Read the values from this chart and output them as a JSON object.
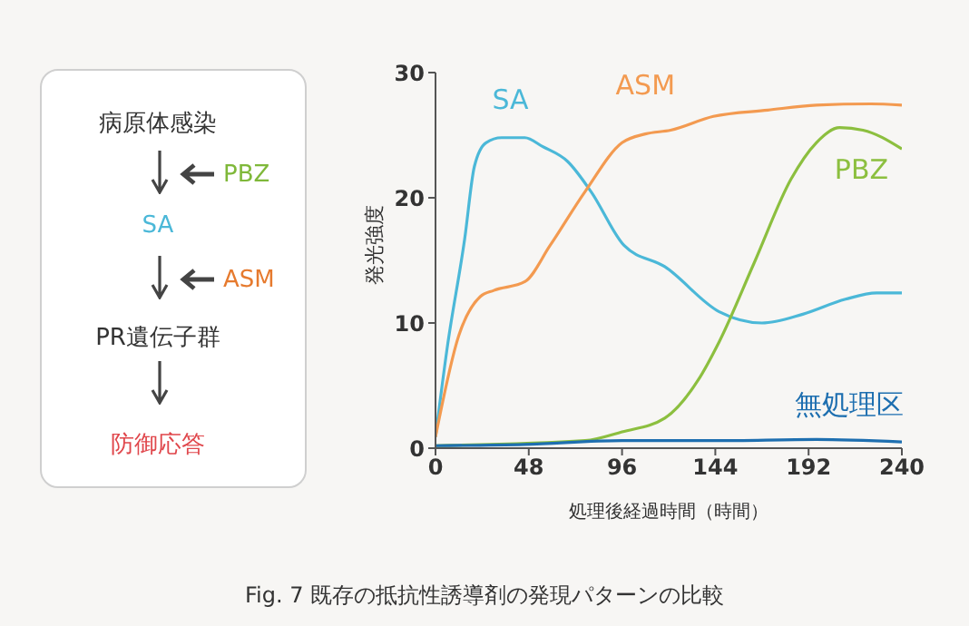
{
  "chart_data": [
    {
      "type": "other",
      "annotations": [
        "病原体感染",
        "PBZ",
        "SA",
        "ASM",
        "PR遺伝子群",
        "防御応答"
      ]
    },
    {
      "type": "line",
      "xlabel": "処理後経過時間（時間）",
      "ylabel": "発光強度",
      "xlim": [
        0,
        240
      ],
      "xticks": [
        0,
        48,
        96,
        144,
        192,
        240
      ],
      "ylim": [
        0,
        30
      ],
      "yticks": [
        0,
        10,
        20,
        30
      ],
      "marker": "none",
      "line_style": "solid",
      "series": [
        {
          "name": "SA",
          "color": "#4bb8d8",
          "x": [
            0,
            6,
            15,
            20,
            26,
            34,
            46,
            55,
            68,
            80,
            97,
            118,
            146,
            168,
            189,
            211,
            227,
            240
          ],
          "values": [
            0.9,
            8,
            16.7,
            22.5,
            24.4,
            24.8,
            24.8,
            24.1,
            22.9,
            20.5,
            16.2,
            14.5,
            10.9,
            10,
            10.7,
            11.9,
            12.4,
            12.4
          ]
        },
        {
          "name": "ASM",
          "color": "#f39a50",
          "x": [
            0,
            12,
            23,
            30,
            46,
            59,
            77,
            96,
            108,
            121,
            143,
            171,
            196,
            224,
            240
          ],
          "values": [
            0.9,
            9,
            12.1,
            12.6,
            13.3,
            16.2,
            20.5,
            24.4,
            25.1,
            25.4,
            26.5,
            27,
            27.4,
            27.5,
            27.4
          ]
        },
        {
          "name": "PBZ",
          "color": "#8cbf3f",
          "x": [
            0,
            77,
            96,
            118,
            135,
            146,
            164,
            183,
            196,
            208,
            220,
            240
          ],
          "values": [
            0.2,
            0.6,
            1.3,
            2.4,
            5.4,
            8.5,
            14.8,
            21.5,
            24.4,
            25.6,
            25.4,
            23.9
          ]
        },
        {
          "name": "無処理区",
          "color": "#1e6fb0",
          "x": [
            0,
            46,
            96,
            144,
            196,
            240
          ],
          "values": [
            0.2,
            0.3,
            0.6,
            0.6,
            0.7,
            0.5
          ]
        }
      ],
      "annotations": [
        "Fig. 7 既存の抵抗性誘導剤の発現パターンの比較"
      ]
    }
  ]
}
